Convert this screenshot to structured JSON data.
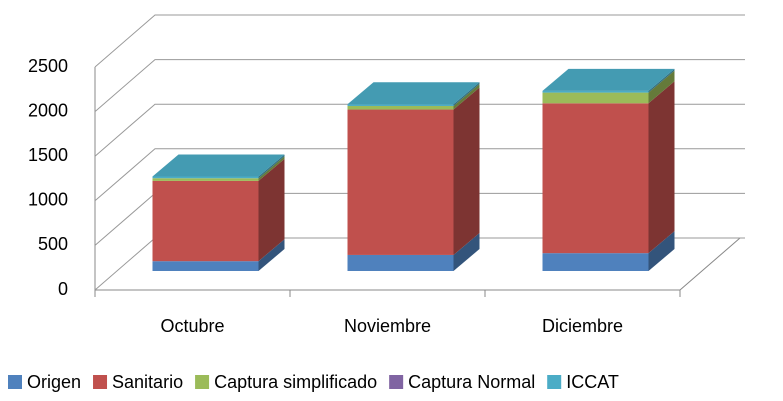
{
  "chart_data": {
    "type": "bar3d_stacked",
    "categories": [
      "Octubre",
      "Noviembre",
      "Diciembre"
    ],
    "series": [
      {
        "name": "Origen",
        "color": "#4f81bd",
        "values": [
          110,
          180,
          200
        ]
      },
      {
        "name": "Sanitario",
        "color": "#c0504d",
        "values": [
          900,
          1630,
          1680
        ]
      },
      {
        "name": "Captura simplificado",
        "color": "#9bbb59",
        "values": [
          30,
          40,
          120
        ]
      },
      {
        "name": "Captura Normal",
        "color": "#8064a2",
        "values": [
          0,
          0,
          0
        ]
      },
      {
        "name": "ICCAT",
        "color": "#4bacc6",
        "values": [
          20,
          20,
          20
        ]
      }
    ],
    "ylim": [
      0,
      2500
    ],
    "yticks": [
      0,
      500,
      1000,
      1500,
      2000,
      2500
    ],
    "grid": true,
    "legend": "bottom"
  }
}
